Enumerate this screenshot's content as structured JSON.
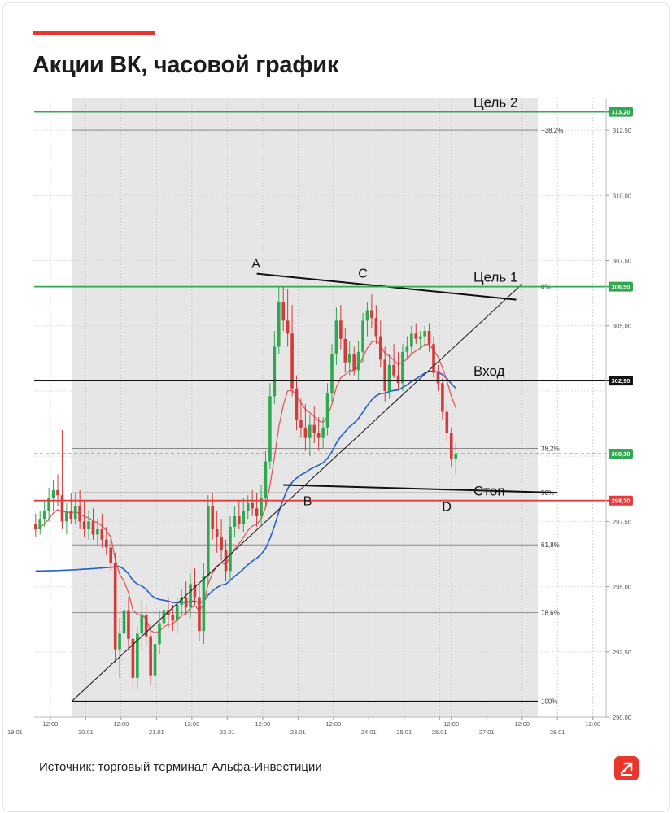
{
  "header": {
    "title": "Акции ВК, часовой график"
  },
  "footer": {
    "source": "Источник: торговый терминал Альфа-Инвестиции"
  },
  "colors": {
    "brand": "#e8362d",
    "bull": "#2fa84f",
    "bear": "#d43a3a",
    "ema_fast": "#e05a5a",
    "ema_slow": "#1f5fd0",
    "target": "#2fa84f",
    "stop": "#e23d3d"
  },
  "chart_data": {
    "type": "candlestick",
    "ylim": [
      290,
      313.75
    ],
    "y_ticks": [
      "290,00",
      "292,50",
      "295,00",
      "297,50",
      "305,00",
      "307,50",
      "310,00",
      "312,50"
    ],
    "x_ticks": [
      {
        "label": "19.01",
        "t": 0
      },
      {
        "label": "12:00",
        "t": 12
      },
      {
        "label": "20.01",
        "t": 24
      },
      {
        "label": "12:00",
        "t": 36
      },
      {
        "label": "21.01",
        "t": 48
      },
      {
        "label": "12:00",
        "t": 60
      },
      {
        "label": "22.01",
        "t": 72
      },
      {
        "label": "12:00",
        "t": 84
      },
      {
        "label": "23.01",
        "t": 96
      },
      {
        "label": "12:00",
        "t": 108
      },
      {
        "label": "24.01",
        "t": 120
      },
      {
        "label": "25.01",
        "t": 132
      },
      {
        "label": "26.01",
        "t": 144
      },
      {
        "label": "12:00",
        "t": 148
      },
      {
        "label": "27.01",
        "t": 160
      },
      {
        "label": "12:00",
        "t": 172
      },
      {
        "label": "28.01",
        "t": 184
      },
      {
        "label": "12:00",
        "t": 196
      }
    ],
    "levels": [
      {
        "name": "Цель 2",
        "value": 313.2,
        "tag": "313,20",
        "color": "#2fa84f"
      },
      {
        "name": "Цель 1",
        "value": 306.5,
        "tag": "306,50",
        "color": "#2fa84f"
      },
      {
        "name": "Вход",
        "value": 302.9,
        "tag": "302,90",
        "color": "#111111"
      },
      {
        "name": "",
        "value": 300.1,
        "tag": "300,10",
        "color": "#2fa84f",
        "dashed": true
      },
      {
        "name": "Стоп",
        "value": 298.3,
        "tag": "298,30",
        "color": "#e23d3d"
      }
    ],
    "fibonacci": [
      {
        "label": "−38,2%",
        "value": 312.5
      },
      {
        "label": "0%",
        "value": 306.5
      },
      {
        "label": "38,2%",
        "value": 300.3
      },
      {
        "label": "50%",
        "value": 298.6
      },
      {
        "label": "61,8%",
        "value": 296.6
      },
      {
        "label": "78,6%",
        "value": 294.0
      },
      {
        "label": "100%",
        "value": 290.6
      }
    ],
    "points": [
      {
        "label": "A",
        "t": 82,
        "value": 307.0
      },
      {
        "label": "C",
        "t": 118,
        "value": 306.6
      },
      {
        "label": "B",
        "t": 102,
        "value": 298.8
      },
      {
        "label": "D",
        "t": 147,
        "value": 298.5
      }
    ],
    "candles": [
      {
        "o": 297.4,
        "h": 297.8,
        "l": 296.9,
        "c": 297.2
      },
      {
        "o": 297.2,
        "h": 297.9,
        "l": 297.0,
        "c": 297.6
      },
      {
        "o": 297.6,
        "h": 298.3,
        "l": 297.3,
        "c": 297.9
      },
      {
        "o": 297.9,
        "h": 298.8,
        "l": 297.5,
        "c": 298.4
      },
      {
        "o": 298.4,
        "h": 299.1,
        "l": 297.9,
        "c": 298.7
      },
      {
        "o": 298.7,
        "h": 299.3,
        "l": 298.1,
        "c": 298.5
      },
      {
        "o": 298.5,
        "h": 301.0,
        "l": 297.2,
        "c": 297.5
      },
      {
        "o": 297.5,
        "h": 298.2,
        "l": 297.0,
        "c": 297.9
      },
      {
        "o": 297.9,
        "h": 298.6,
        "l": 297.4,
        "c": 297.6
      },
      {
        "o": 297.6,
        "h": 298.6,
        "l": 297.4,
        "c": 298.1
      },
      {
        "o": 298.1,
        "h": 298.7,
        "l": 297.2,
        "c": 297.5
      },
      {
        "o": 297.5,
        "h": 298.3,
        "l": 296.9,
        "c": 297.2
      },
      {
        "o": 297.2,
        "h": 297.9,
        "l": 296.8,
        "c": 297.5
      },
      {
        "o": 297.5,
        "h": 298.0,
        "l": 296.8,
        "c": 297.0
      },
      {
        "o": 297.0,
        "h": 297.6,
        "l": 296.6,
        "c": 297.2
      },
      {
        "o": 297.2,
        "h": 297.8,
        "l": 296.5,
        "c": 296.8
      },
      {
        "o": 296.8,
        "h": 297.3,
        "l": 296.2,
        "c": 296.5
      },
      {
        "o": 296.5,
        "h": 296.9,
        "l": 295.6,
        "c": 295.9
      },
      {
        "o": 295.9,
        "h": 296.3,
        "l": 292.1,
        "c": 292.6
      },
      {
        "o": 292.6,
        "h": 293.8,
        "l": 291.5,
        "c": 293.2
      },
      {
        "o": 293.2,
        "h": 294.6,
        "l": 292.7,
        "c": 294.1
      },
      {
        "o": 294.1,
        "h": 294.6,
        "l": 292.6,
        "c": 293.0
      },
      {
        "o": 293.0,
        "h": 293.8,
        "l": 291.0,
        "c": 291.5
      },
      {
        "o": 291.5,
        "h": 293.5,
        "l": 291.1,
        "c": 293.2
      },
      {
        "o": 293.2,
        "h": 294.5,
        "l": 292.6,
        "c": 293.9
      },
      {
        "o": 293.9,
        "h": 294.3,
        "l": 292.7,
        "c": 293.1
      },
      {
        "o": 293.1,
        "h": 293.6,
        "l": 291.2,
        "c": 291.6
      },
      {
        "o": 291.6,
        "h": 293.2,
        "l": 291.1,
        "c": 292.8
      },
      {
        "o": 292.8,
        "h": 294.1,
        "l": 292.4,
        "c": 293.6
      },
      {
        "o": 293.6,
        "h": 294.5,
        "l": 293.2,
        "c": 294.1
      },
      {
        "o": 294.1,
        "h": 294.6,
        "l": 293.4,
        "c": 293.9
      },
      {
        "o": 293.9,
        "h": 294.3,
        "l": 293.3,
        "c": 293.7
      },
      {
        "o": 293.7,
        "h": 294.6,
        "l": 293.2,
        "c": 294.3
      },
      {
        "o": 294.3,
        "h": 294.9,
        "l": 293.9,
        "c": 294.6
      },
      {
        "o": 294.6,
        "h": 295.2,
        "l": 293.9,
        "c": 294.2
      },
      {
        "o": 294.2,
        "h": 295.5,
        "l": 293.8,
        "c": 295.1
      },
      {
        "o": 295.1,
        "h": 295.7,
        "l": 294.3,
        "c": 294.6
      },
      {
        "o": 294.6,
        "h": 295.1,
        "l": 292.9,
        "c": 293.3
      },
      {
        "o": 293.3,
        "h": 295.9,
        "l": 292.8,
        "c": 295.4
      },
      {
        "o": 295.4,
        "h": 298.5,
        "l": 295.1,
        "c": 298.1
      },
      {
        "o": 298.1,
        "h": 298.6,
        "l": 296.8,
        "c": 297.2
      },
      {
        "o": 297.2,
        "h": 297.9,
        "l": 296.3,
        "c": 296.9
      },
      {
        "o": 296.9,
        "h": 297.6,
        "l": 296.0,
        "c": 296.4
      },
      {
        "o": 296.4,
        "h": 296.8,
        "l": 295.2,
        "c": 295.6
      },
      {
        "o": 295.6,
        "h": 297.7,
        "l": 295.2,
        "c": 297.3
      },
      {
        "o": 297.3,
        "h": 298.1,
        "l": 296.9,
        "c": 297.7
      },
      {
        "o": 297.7,
        "h": 298.3,
        "l": 297.2,
        "c": 297.4
      },
      {
        "o": 297.4,
        "h": 298.4,
        "l": 297.1,
        "c": 297.9
      },
      {
        "o": 297.9,
        "h": 298.5,
        "l": 297.6,
        "c": 298.2
      },
      {
        "o": 298.2,
        "h": 298.7,
        "l": 297.7,
        "c": 298.0
      },
      {
        "o": 298.0,
        "h": 298.6,
        "l": 297.3,
        "c": 297.7
      },
      {
        "o": 297.7,
        "h": 298.9,
        "l": 297.4,
        "c": 298.4
      },
      {
        "o": 298.4,
        "h": 300.2,
        "l": 298.0,
        "c": 299.8
      },
      {
        "o": 299.8,
        "h": 302.8,
        "l": 299.5,
        "c": 302.3
      },
      {
        "o": 302.3,
        "h": 304.8,
        "l": 302.0,
        "c": 304.2
      },
      {
        "o": 304.2,
        "h": 306.5,
        "l": 303.9,
        "c": 305.9
      },
      {
        "o": 305.9,
        "h": 306.5,
        "l": 304.8,
        "c": 305.2
      },
      {
        "o": 305.2,
        "h": 306.4,
        "l": 304.2,
        "c": 304.7
      },
      {
        "o": 304.7,
        "h": 305.8,
        "l": 302.3,
        "c": 302.6
      },
      {
        "o": 302.6,
        "h": 303.1,
        "l": 301.0,
        "c": 301.4
      },
      {
        "o": 301.4,
        "h": 302.2,
        "l": 300.7,
        "c": 301.1
      },
      {
        "o": 301.1,
        "h": 302.0,
        "l": 300.2,
        "c": 300.7
      },
      {
        "o": 300.7,
        "h": 301.6,
        "l": 300.0,
        "c": 301.2
      },
      {
        "o": 301.2,
        "h": 301.9,
        "l": 300.5,
        "c": 300.9
      },
      {
        "o": 300.9,
        "h": 301.5,
        "l": 300.2,
        "c": 300.7
      },
      {
        "o": 300.7,
        "h": 301.5,
        "l": 300.3,
        "c": 301.1
      },
      {
        "o": 301.1,
        "h": 302.8,
        "l": 300.8,
        "c": 302.4
      },
      {
        "o": 302.4,
        "h": 304.3,
        "l": 302.1,
        "c": 303.9
      },
      {
        "o": 303.9,
        "h": 305.7,
        "l": 303.5,
        "c": 305.2
      },
      {
        "o": 305.2,
        "h": 305.8,
        "l": 304.1,
        "c": 304.5
      },
      {
        "o": 304.5,
        "h": 304.9,
        "l": 303.2,
        "c": 303.6
      },
      {
        "o": 303.6,
        "h": 304.4,
        "l": 303.1,
        "c": 303.9
      },
      {
        "o": 303.9,
        "h": 304.2,
        "l": 303.1,
        "c": 303.3
      },
      {
        "o": 303.3,
        "h": 304.4,
        "l": 302.9,
        "c": 304.0
      },
      {
        "o": 304.0,
        "h": 305.5,
        "l": 303.6,
        "c": 305.2
      },
      {
        "o": 305.2,
        "h": 305.9,
        "l": 304.6,
        "c": 305.6
      },
      {
        "o": 305.6,
        "h": 306.2,
        "l": 304.9,
        "c": 305.3
      },
      {
        "o": 305.3,
        "h": 305.8,
        "l": 304.3,
        "c": 304.6
      },
      {
        "o": 304.6,
        "h": 305.2,
        "l": 303.4,
        "c": 303.7
      },
      {
        "o": 303.7,
        "h": 304.2,
        "l": 302.1,
        "c": 302.5
      },
      {
        "o": 302.5,
        "h": 303.9,
        "l": 302.2,
        "c": 303.5
      },
      {
        "o": 303.5,
        "h": 304.3,
        "l": 303.0,
        "c": 303.1
      },
      {
        "o": 303.1,
        "h": 304.0,
        "l": 302.6,
        "c": 302.8
      },
      {
        "o": 302.8,
        "h": 304.3,
        "l": 302.5,
        "c": 304.0
      },
      {
        "o": 304.0,
        "h": 304.6,
        "l": 303.7,
        "c": 304.2
      },
      {
        "o": 304.2,
        "h": 305.0,
        "l": 303.9,
        "c": 304.7
      },
      {
        "o": 304.7,
        "h": 305.1,
        "l": 304.3,
        "c": 304.5
      },
      {
        "o": 304.5,
        "h": 304.8,
        "l": 304.1,
        "c": 304.6
      },
      {
        "o": 304.6,
        "h": 305.0,
        "l": 304.2,
        "c": 304.8
      },
      {
        "o": 304.8,
        "h": 305.1,
        "l": 304.0,
        "c": 304.3
      },
      {
        "o": 304.3,
        "h": 304.6,
        "l": 303.0,
        "c": 303.2
      },
      {
        "o": 303.2,
        "h": 303.5,
        "l": 302.5,
        "c": 302.8
      },
      {
        "o": 302.8,
        "h": 303.0,
        "l": 301.4,
        "c": 301.7
      },
      {
        "o": 301.7,
        "h": 302.0,
        "l": 300.6,
        "c": 300.9
      },
      {
        "o": 300.9,
        "h": 301.1,
        "l": 299.6,
        "c": 299.9
      },
      {
        "o": 299.9,
        "h": 300.5,
        "l": 299.3,
        "c": 300.1
      }
    ]
  }
}
